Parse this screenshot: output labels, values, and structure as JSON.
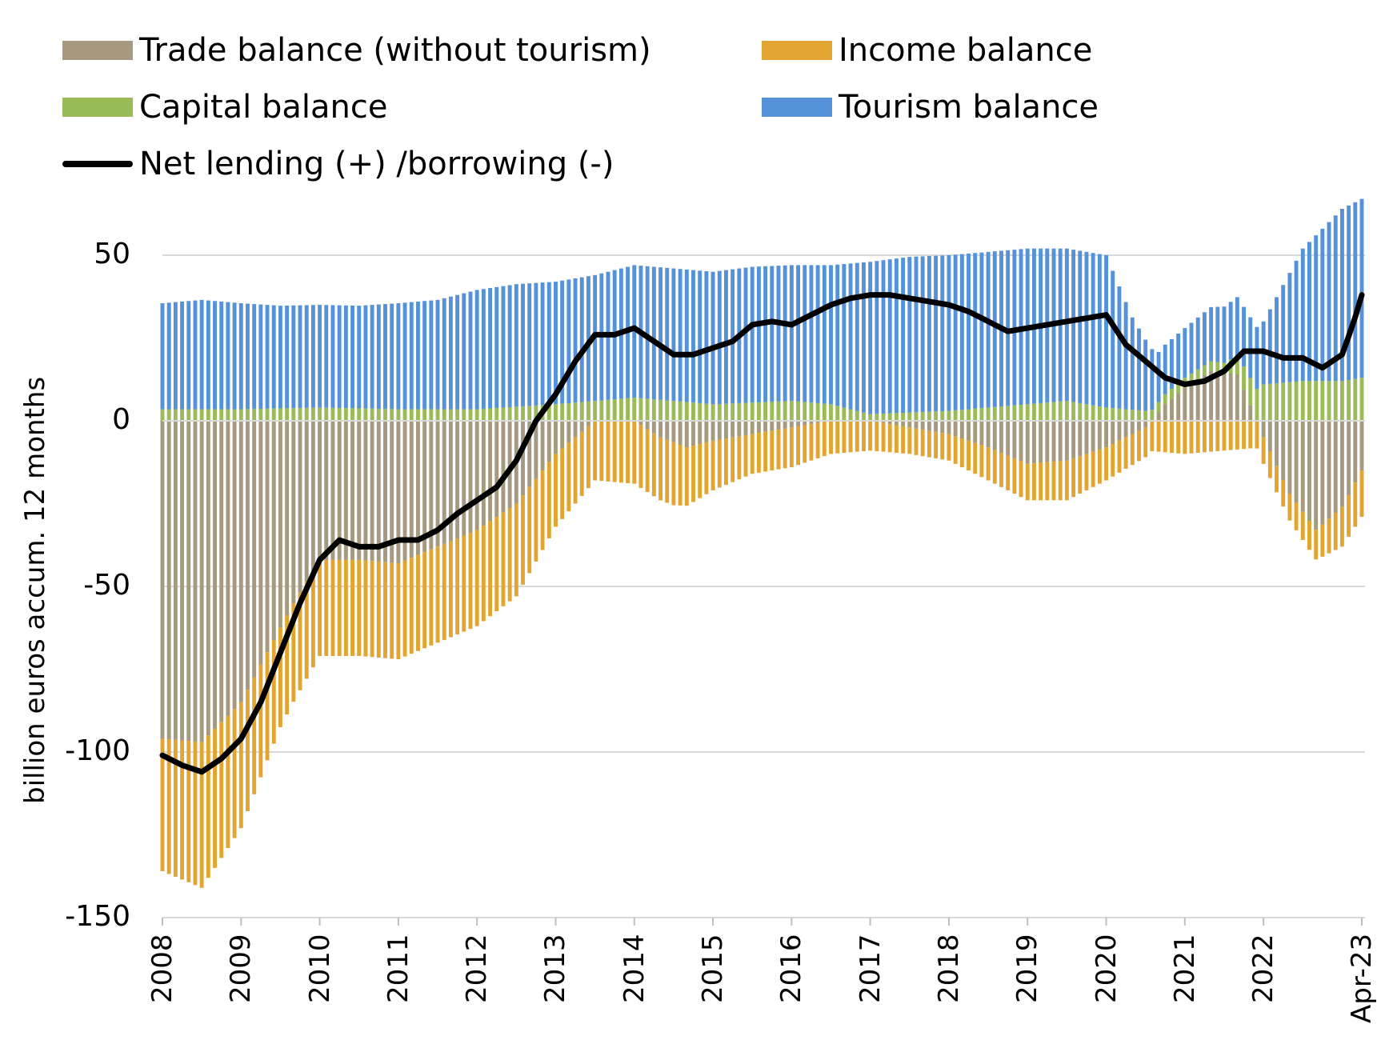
{
  "chart_data": {
    "type": "bar",
    "stacked": true,
    "ylabel": "billion euros accum. 12 months",
    "xlabel": "",
    "title": "",
    "ylim": [
      -150,
      65
    ],
    "yticks": [
      50,
      0,
      -50,
      -100,
      -150
    ],
    "x_tick_labels": [
      "2008",
      "2009",
      "2010",
      "2011",
      "2012",
      "2013",
      "2014",
      "2015",
      "2016",
      "2017",
      "2018",
      "2019",
      "2020",
      "2021",
      "2022",
      "Apr-23"
    ],
    "x_tick_years": [
      2008,
      2009,
      2010,
      2011,
      2012,
      2013,
      2014,
      2015,
      2016,
      2017,
      2018,
      2019,
      2020,
      2021,
      2022,
      2023.25
    ],
    "grid": true,
    "legend_position": "top",
    "colors": {
      "trade": "#A59A80",
      "income": "#E3A532",
      "capital": "#9BBB59",
      "tourism": "#5592D9",
      "net": "#000000"
    },
    "series": [
      {
        "name": "Trade balance (without tourism)",
        "key": "trade",
        "kind": "bar",
        "anchors": [
          [
            2008.0,
            -96
          ],
          [
            2008.5,
            -97
          ],
          [
            2009.0,
            -85
          ],
          [
            2009.33,
            -70
          ],
          [
            2009.67,
            -55
          ],
          [
            2010.0,
            -42
          ],
          [
            2010.5,
            -42
          ],
          [
            2011.0,
            -43
          ],
          [
            2011.5,
            -38
          ],
          [
            2012.0,
            -33
          ],
          [
            2012.5,
            -25
          ],
          [
            2013.0,
            -10
          ],
          [
            2013.5,
            0
          ],
          [
            2014.0,
            0
          ],
          [
            2014.33,
            -5
          ],
          [
            2014.67,
            -8
          ],
          [
            2015.0,
            -6
          ],
          [
            2015.5,
            -4
          ],
          [
            2016.0,
            -2
          ],
          [
            2016.5,
            0
          ],
          [
            2017.0,
            0
          ],
          [
            2017.5,
            -2
          ],
          [
            2018.0,
            -4
          ],
          [
            2018.5,
            -8
          ],
          [
            2019.0,
            -13
          ],
          [
            2019.5,
            -12
          ],
          [
            2020.0,
            -8
          ],
          [
            2020.5,
            -2
          ],
          [
            2020.75,
            5
          ],
          [
            2021.0,
            10
          ],
          [
            2021.33,
            15
          ],
          [
            2021.67,
            14
          ],
          [
            2022.0,
            -5
          ],
          [
            2022.33,
            -22
          ],
          [
            2022.67,
            -33
          ],
          [
            2023.0,
            -26
          ],
          [
            2023.25,
            -15
          ]
        ]
      },
      {
        "name": "Income balance",
        "key": "income",
        "kind": "bar",
        "anchors": [
          [
            2008.0,
            -40
          ],
          [
            2008.5,
            -44
          ],
          [
            2009.0,
            -38
          ],
          [
            2009.5,
            -30
          ],
          [
            2010.0,
            -29
          ],
          [
            2010.5,
            -29
          ],
          [
            2011.0,
            -29
          ],
          [
            2011.5,
            -29
          ],
          [
            2012.0,
            -29
          ],
          [
            2012.5,
            -28
          ],
          [
            2013.0,
            -22
          ],
          [
            2013.5,
            -18
          ],
          [
            2014.0,
            -19
          ],
          [
            2014.5,
            -19
          ],
          [
            2015.0,
            -15
          ],
          [
            2015.5,
            -12
          ],
          [
            2016.0,
            -12
          ],
          [
            2016.5,
            -10
          ],
          [
            2017.0,
            -9
          ],
          [
            2017.5,
            -8
          ],
          [
            2018.0,
            -8
          ],
          [
            2018.5,
            -10
          ],
          [
            2019.0,
            -11
          ],
          [
            2019.5,
            -12
          ],
          [
            2020.0,
            -10
          ],
          [
            2020.5,
            -9
          ],
          [
            2021.0,
            -10
          ],
          [
            2021.5,
            -9
          ],
          [
            2022.0,
            -8
          ],
          [
            2022.33,
            -8
          ],
          [
            2022.67,
            -9
          ],
          [
            2023.0,
            -12
          ],
          [
            2023.25,
            -14
          ]
        ]
      },
      {
        "name": "Capital balance",
        "key": "capital",
        "kind": "bar",
        "anchors": [
          [
            2008.0,
            3.5
          ],
          [
            2009.0,
            3.5
          ],
          [
            2010.0,
            4
          ],
          [
            2011.0,
            3.5
          ],
          [
            2012.0,
            3.5
          ],
          [
            2013.0,
            5
          ],
          [
            2014.0,
            7
          ],
          [
            2014.5,
            6
          ],
          [
            2015.0,
            5
          ],
          [
            2016.0,
            6
          ],
          [
            2016.5,
            5
          ],
          [
            2017.0,
            2
          ],
          [
            2018.0,
            3
          ],
          [
            2019.0,
            5
          ],
          [
            2019.5,
            6
          ],
          [
            2020.0,
            4
          ],
          [
            2020.5,
            3
          ],
          [
            2021.0,
            3
          ],
          [
            2021.5,
            3
          ],
          [
            2022.0,
            11
          ],
          [
            2022.5,
            12
          ],
          [
            2023.0,
            12
          ],
          [
            2023.25,
            13
          ]
        ]
      },
      {
        "name": "Tourism balance",
        "key": "tourism",
        "kind": "bar",
        "anchors": [
          [
            2008.0,
            32
          ],
          [
            2008.5,
            33
          ],
          [
            2009.0,
            32
          ],
          [
            2009.5,
            31
          ],
          [
            2010.0,
            31
          ],
          [
            2010.5,
            31
          ],
          [
            2011.0,
            32
          ],
          [
            2011.5,
            33
          ],
          [
            2012.0,
            36
          ],
          [
            2012.5,
            37
          ],
          [
            2013.0,
            37
          ],
          [
            2013.5,
            38
          ],
          [
            2014.0,
            40
          ],
          [
            2014.5,
            40
          ],
          [
            2015.0,
            40
          ],
          [
            2015.5,
            41
          ],
          [
            2016.0,
            41
          ],
          [
            2016.5,
            42
          ],
          [
            2017.0,
            46
          ],
          [
            2017.5,
            47
          ],
          [
            2018.0,
            47
          ],
          [
            2018.5,
            47
          ],
          [
            2019.0,
            47
          ],
          [
            2019.5,
            46
          ],
          [
            2020.0,
            46
          ],
          [
            2020.33,
            28
          ],
          [
            2020.67,
            15
          ],
          [
            2021.0,
            15
          ],
          [
            2021.5,
            17
          ],
          [
            2022.0,
            19
          ],
          [
            2022.5,
            40
          ],
          [
            2023.0,
            52
          ],
          [
            2023.25,
            54
          ]
        ]
      },
      {
        "name": "Net lending (+) /borrowing (-)",
        "key": "net",
        "kind": "line",
        "anchors": [
          [
            2008.0,
            -101
          ],
          [
            2008.25,
            -104
          ],
          [
            2008.5,
            -106
          ],
          [
            2008.75,
            -102
          ],
          [
            2009.0,
            -96
          ],
          [
            2009.25,
            -85
          ],
          [
            2009.5,
            -70
          ],
          [
            2009.75,
            -55
          ],
          [
            2010.0,
            -42
          ],
          [
            2010.25,
            -36
          ],
          [
            2010.5,
            -38
          ],
          [
            2010.75,
            -38
          ],
          [
            2011.0,
            -36
          ],
          [
            2011.25,
            -36
          ],
          [
            2011.5,
            -33
          ],
          [
            2011.75,
            -28
          ],
          [
            2012.0,
            -24
          ],
          [
            2012.25,
            -20
          ],
          [
            2012.5,
            -12
          ],
          [
            2012.75,
            0
          ],
          [
            2013.0,
            8
          ],
          [
            2013.25,
            18
          ],
          [
            2013.5,
            26
          ],
          [
            2013.75,
            26
          ],
          [
            2014.0,
            28
          ],
          [
            2014.25,
            24
          ],
          [
            2014.5,
            20
          ],
          [
            2014.75,
            20
          ],
          [
            2015.0,
            22
          ],
          [
            2015.25,
            24
          ],
          [
            2015.5,
            29
          ],
          [
            2015.75,
            30
          ],
          [
            2016.0,
            29
          ],
          [
            2016.25,
            32
          ],
          [
            2016.5,
            35
          ],
          [
            2016.75,
            37
          ],
          [
            2017.0,
            38
          ],
          [
            2017.25,
            38
          ],
          [
            2017.5,
            37
          ],
          [
            2017.75,
            36
          ],
          [
            2018.0,
            35
          ],
          [
            2018.25,
            33
          ],
          [
            2018.5,
            30
          ],
          [
            2018.75,
            27
          ],
          [
            2019.0,
            28
          ],
          [
            2019.25,
            29
          ],
          [
            2019.5,
            30
          ],
          [
            2019.75,
            31
          ],
          [
            2020.0,
            32
          ],
          [
            2020.25,
            23
          ],
          [
            2020.5,
            18
          ],
          [
            2020.75,
            13
          ],
          [
            2021.0,
            11
          ],
          [
            2021.25,
            12
          ],
          [
            2021.5,
            15
          ],
          [
            2021.75,
            21
          ],
          [
            2022.0,
            21
          ],
          [
            2022.25,
            19
          ],
          [
            2022.5,
            19
          ],
          [
            2022.75,
            16
          ],
          [
            2023.0,
            20
          ],
          [
            2023.15,
            30
          ],
          [
            2023.25,
            38
          ]
        ]
      }
    ]
  }
}
